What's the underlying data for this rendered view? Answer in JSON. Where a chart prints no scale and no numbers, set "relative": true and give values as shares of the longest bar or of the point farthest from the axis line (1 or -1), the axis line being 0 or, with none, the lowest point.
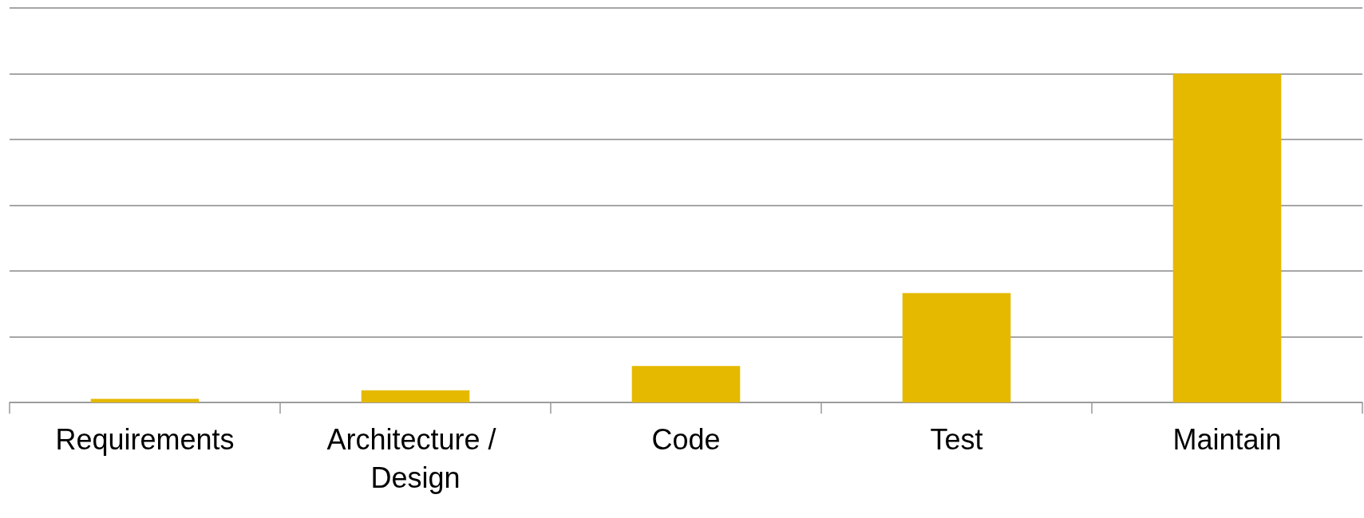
{
  "chart_data": {
    "type": "bar",
    "relative": true,
    "grid": "y",
    "categories": [
      "Requirements",
      "Architecture / Design",
      "Code",
      "Test",
      "Maintain"
    ],
    "values": [
      0.011,
      0.037,
      0.111,
      0.333,
      1
    ],
    "color": "#e5b900"
  }
}
